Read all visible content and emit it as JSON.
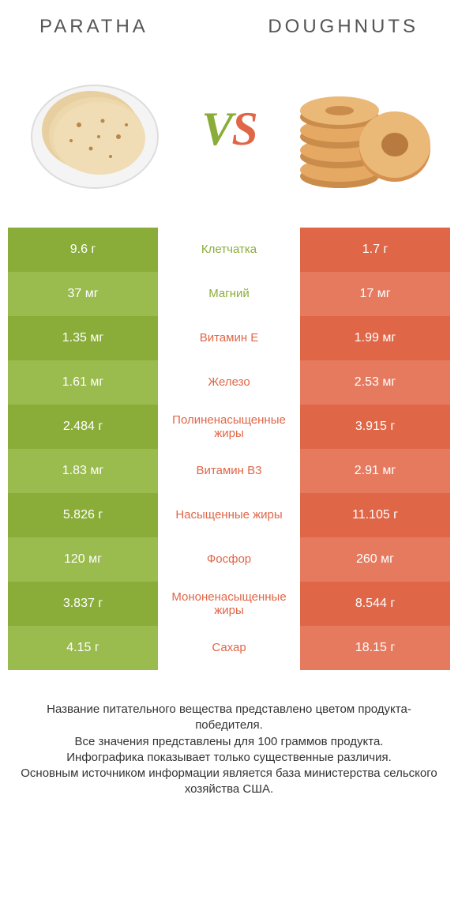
{
  "titles": {
    "left": "PARATHA",
    "right": "DOUGHNUTS"
  },
  "vs": {
    "v": "V",
    "s": "S"
  },
  "colors": {
    "left_main": "#8aad3a",
    "left_alt": "#9abb4e",
    "right_main": "#e06648",
    "right_alt": "#e57a5f",
    "mid_left": "#8aad3a",
    "mid_right": "#e06648"
  },
  "rows": [
    {
      "label": "Клетчатка",
      "left": "9.6 г",
      "right": "1.7 г",
      "winner": "left"
    },
    {
      "label": "Магний",
      "left": "37 мг",
      "right": "17 мг",
      "winner": "left"
    },
    {
      "label": "Витамин E",
      "left": "1.35 мг",
      "right": "1.99 мг",
      "winner": "right"
    },
    {
      "label": "Железо",
      "left": "1.61 мг",
      "right": "2.53 мг",
      "winner": "right"
    },
    {
      "label": "Полиненасыщенные жиры",
      "left": "2.484 г",
      "right": "3.915 г",
      "winner": "right"
    },
    {
      "label": "Витамин B3",
      "left": "1.83 мг",
      "right": "2.91 мг",
      "winner": "right"
    },
    {
      "label": "Насыщенные жиры",
      "left": "5.826 г",
      "right": "11.105 г",
      "winner": "right"
    },
    {
      "label": "Фосфор",
      "left": "120 мг",
      "right": "260 мг",
      "winner": "right"
    },
    {
      "label": "Мононенасыщенные жиры",
      "left": "3.837 г",
      "right": "8.544 г",
      "winner": "right"
    },
    {
      "label": "Сахар",
      "left": "4.15 г",
      "right": "18.15 г",
      "winner": "right"
    }
  ],
  "footer": {
    "l1": "Название питательного вещества представлено цветом продукта-победителя.",
    "l2": "Все значения представлены для 100 граммов продукта.",
    "l3": "Инфографика показывает только существенные различия.",
    "l4": "Основным источником информации является база министерства сельского хозяйства США."
  }
}
